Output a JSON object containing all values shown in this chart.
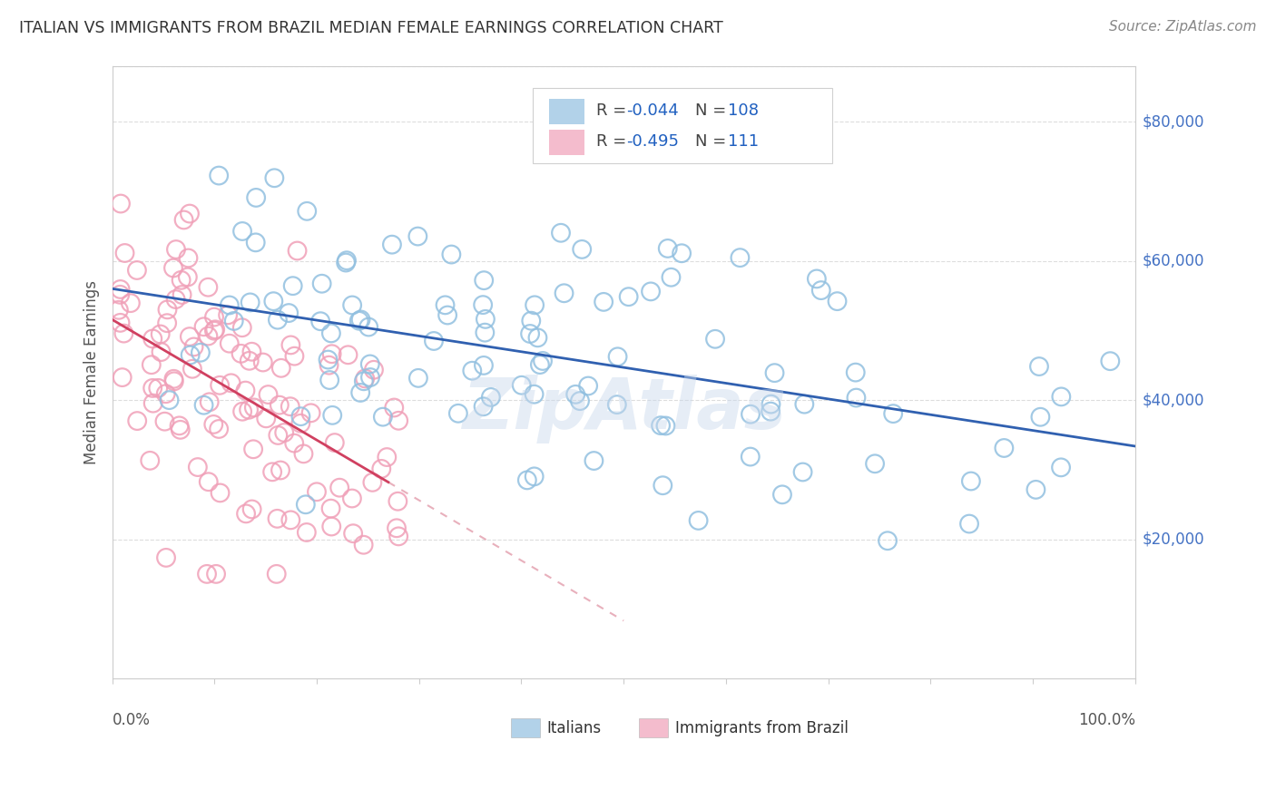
{
  "title": "ITALIAN VS IMMIGRANTS FROM BRAZIL MEDIAN FEMALE EARNINGS CORRELATION CHART",
  "source": "Source: ZipAtlas.com",
  "ylabel": "Median Female Earnings",
  "ytick_labels": [
    "$20,000",
    "$40,000",
    "$60,000",
    "$80,000"
  ],
  "ytick_values": [
    20000,
    40000,
    60000,
    80000
  ],
  "watermark": "ZipAtlas",
  "italian_color": "#92c0e0",
  "italy_edge_color": "#6aaad4",
  "brazil_color": "#f0a0b8",
  "brazil_edge_color": "#e8809a",
  "italian_line_color": "#3060b0",
  "brazil_line_color": "#d04060",
  "brazil_dash_color": "#e8b0bc",
  "R_italian": -0.044,
  "N_italian": 108,
  "R_brazil": -0.495,
  "N_brazil": 111,
  "xmin": 0.0,
  "xmax": 1.0,
  "ymin": 0,
  "ymax": 88000,
  "legend_R_color": "#2060c0",
  "legend_N_color": "#2060c0",
  "legend_label_color": "#444444",
  "title_color": "#333333",
  "source_color": "#888888",
  "ytick_color": "#4472c4",
  "grid_color": "#dddddd",
  "spine_color": "#cccccc"
}
